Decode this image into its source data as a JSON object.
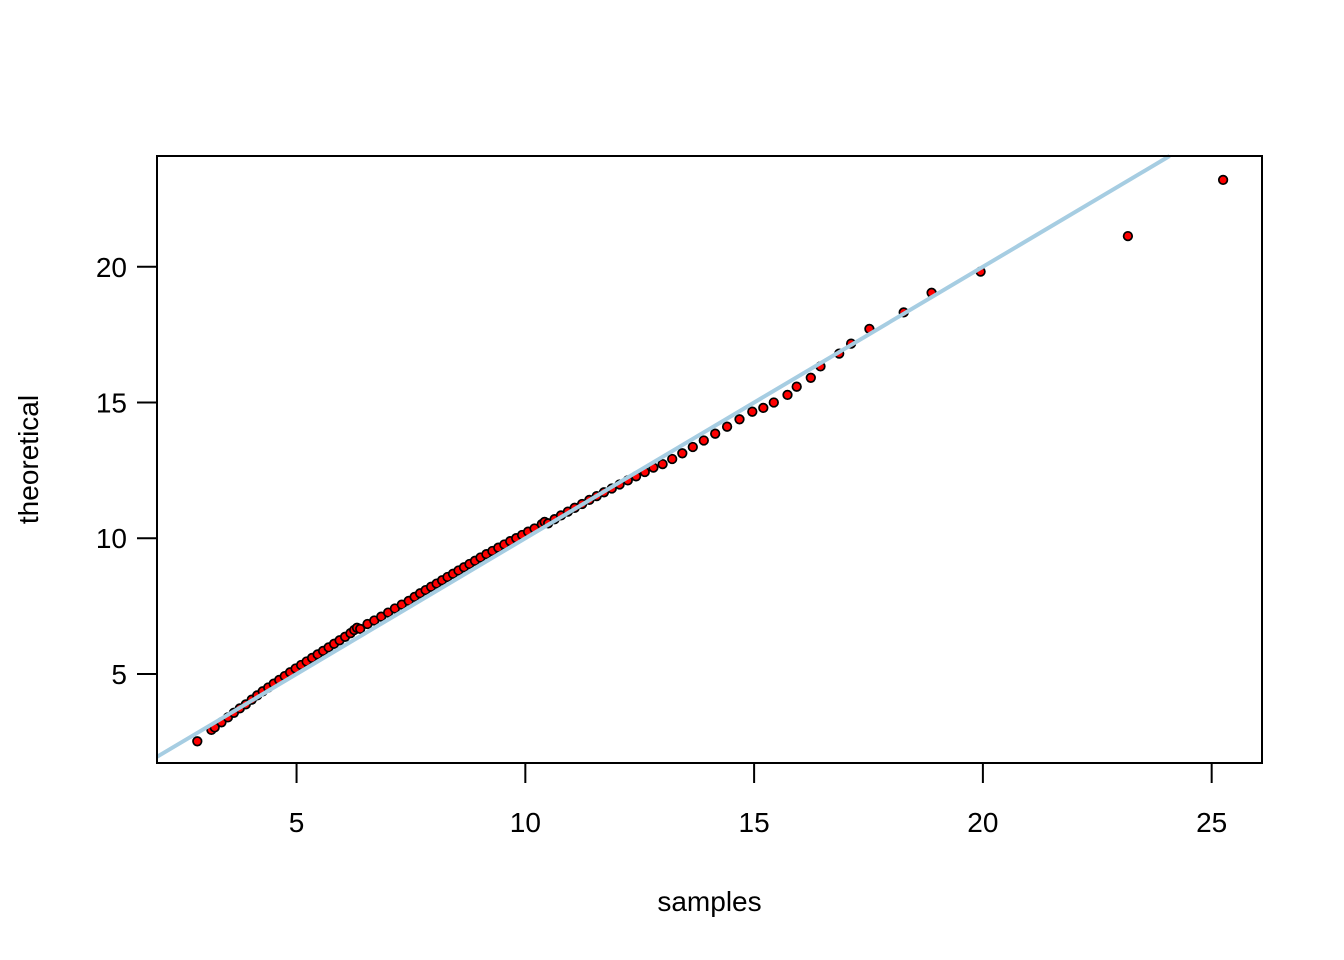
{
  "figure": {
    "kind": "qq-plot",
    "background_color": "#ffffff",
    "frame_color": "#000000"
  },
  "chart_data": {
    "type": "scatter",
    "title": "",
    "xlabel": "samples",
    "ylabel": "theoretical",
    "x_ticks": [
      5,
      10,
      15,
      20,
      25
    ],
    "y_ticks": [
      5,
      10,
      15,
      20
    ],
    "xlim": [
      1.95,
      26.1
    ],
    "ylim": [
      1.72,
      24.08
    ],
    "grid": false,
    "legend": null,
    "reference_line": {
      "kind": "identity",
      "label": "y = x",
      "color": "#A6CDE2",
      "width": 4
    },
    "point_style": {
      "fill": "#FF0000",
      "stroke": "#000000",
      "stroke_width": 1.7,
      "radius": 4.3
    },
    "points": [
      [
        2.83,
        2.52
      ],
      [
        3.14,
        2.94
      ],
      [
        3.21,
        3.03
      ],
      [
        3.36,
        3.22
      ],
      [
        3.5,
        3.4
      ],
      [
        3.63,
        3.57
      ],
      [
        3.76,
        3.73
      ],
      [
        3.89,
        3.88
      ],
      [
        4.02,
        4.05
      ],
      [
        4.14,
        4.21
      ],
      [
        4.26,
        4.36
      ],
      [
        4.38,
        4.5
      ],
      [
        4.5,
        4.64
      ],
      [
        4.62,
        4.78
      ],
      [
        4.74,
        4.92
      ],
      [
        4.86,
        5.06
      ],
      [
        4.98,
        5.2
      ],
      [
        5.1,
        5.33
      ],
      [
        5.22,
        5.46
      ],
      [
        5.34,
        5.59
      ],
      [
        5.46,
        5.72
      ],
      [
        5.58,
        5.85
      ],
      [
        5.7,
        5.98
      ],
      [
        5.82,
        6.11
      ],
      [
        5.94,
        6.24
      ],
      [
        6.06,
        6.37
      ],
      [
        6.18,
        6.5
      ],
      [
        6.26,
        6.62
      ],
      [
        6.32,
        6.7
      ],
      [
        6.39,
        6.66
      ],
      [
        6.55,
        6.84
      ],
      [
        6.7,
        6.97
      ],
      [
        6.85,
        7.11
      ],
      [
        7.0,
        7.26
      ],
      [
        7.15,
        7.41
      ],
      [
        7.3,
        7.55
      ],
      [
        7.45,
        7.69
      ],
      [
        7.58,
        7.84
      ],
      [
        7.7,
        7.97
      ],
      [
        7.82,
        8.09
      ],
      [
        7.94,
        8.21
      ],
      [
        8.06,
        8.33
      ],
      [
        8.18,
        8.45
      ],
      [
        8.3,
        8.57
      ],
      [
        8.42,
        8.69
      ],
      [
        8.54,
        8.81
      ],
      [
        8.66,
        8.93
      ],
      [
        8.78,
        9.05
      ],
      [
        8.9,
        9.17
      ],
      [
        9.02,
        9.29
      ],
      [
        9.15,
        9.41
      ],
      [
        9.28,
        9.53
      ],
      [
        9.41,
        9.65
      ],
      [
        9.54,
        9.77
      ],
      [
        9.67,
        9.89
      ],
      [
        9.8,
        10.0
      ],
      [
        9.93,
        10.12
      ],
      [
        10.06,
        10.24
      ],
      [
        10.2,
        10.36
      ],
      [
        10.36,
        10.52
      ],
      [
        10.42,
        10.6
      ],
      [
        10.5,
        10.55
      ],
      [
        10.64,
        10.7
      ],
      [
        10.78,
        10.84
      ],
      [
        10.93,
        10.98
      ],
      [
        11.08,
        11.12
      ],
      [
        11.24,
        11.26
      ],
      [
        11.4,
        11.41
      ],
      [
        11.56,
        11.55
      ],
      [
        11.72,
        11.69
      ],
      [
        11.89,
        11.83
      ],
      [
        12.06,
        11.98
      ],
      [
        12.24,
        12.13
      ],
      [
        12.42,
        12.28
      ],
      [
        12.61,
        12.44
      ],
      [
        12.8,
        12.6
      ],
      [
        13.0,
        12.73
      ],
      [
        13.21,
        12.92
      ],
      [
        13.43,
        13.13
      ],
      [
        13.66,
        13.36
      ],
      [
        13.9,
        13.6
      ],
      [
        14.15,
        13.85
      ],
      [
        14.41,
        14.11
      ],
      [
        14.68,
        14.38
      ],
      [
        14.96,
        14.66
      ],
      [
        15.2,
        14.8
      ],
      [
        15.43,
        15.0
      ],
      [
        15.73,
        15.28
      ],
      [
        15.93,
        15.58
      ],
      [
        16.24,
        15.91
      ],
      [
        16.45,
        16.33
      ],
      [
        16.86,
        16.8
      ],
      [
        17.12,
        17.17
      ],
      [
        17.52,
        17.71
      ],
      [
        18.27,
        18.32
      ],
      [
        18.88,
        19.04
      ],
      [
        19.95,
        19.82
      ],
      [
        23.17,
        21.13
      ],
      [
        25.25,
        23.2
      ]
    ]
  }
}
